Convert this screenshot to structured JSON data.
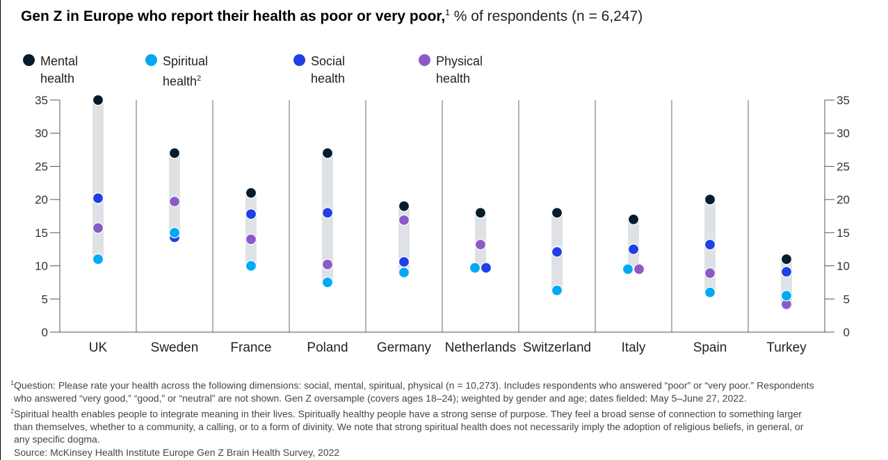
{
  "title": {
    "bold": "Gen Z in Europe who report their health as poor or very poor,",
    "sup": "1",
    "subtitle": " % of respondents (n = 6,247)"
  },
  "legend": [
    {
      "key": "mental",
      "line1": "Mental",
      "line2": "health",
      "sup": "",
      "color": "#051C2C"
    },
    {
      "key": "spiritual",
      "line1": "Spiritual",
      "line2": "health",
      "sup": "2",
      "color": "#00A9F4"
    },
    {
      "key": "social",
      "line1": "Social",
      "line2": "health",
      "sup": "",
      "color": "#1F40E6"
    },
    {
      "key": "physical",
      "line1": "Physical",
      "line2": "health",
      "sup": "",
      "color": "#8C5AC8"
    }
  ],
  "chart_data": {
    "type": "dot-range",
    "title": "Gen Z in Europe who report their health as poor or very poor",
    "ylabel": "% of respondents",
    "ylim": [
      0,
      35
    ],
    "yticks": [
      0,
      5,
      10,
      15,
      20,
      25,
      30,
      35
    ],
    "categories": [
      "UK",
      "Sweden",
      "France",
      "Poland",
      "Germany",
      "Netherlands",
      "Switzerland",
      "Italy",
      "Spain",
      "Turkey"
    ],
    "series": [
      {
        "name": "Mental health",
        "key": "mental",
        "color": "#051C2C",
        "values": [
          35,
          27,
          21,
          27,
          19,
          18,
          18,
          17,
          20,
          11
        ]
      },
      {
        "name": "Spiritual health",
        "key": "spiritual",
        "color": "#00A9F4",
        "values": [
          11,
          15,
          10,
          7.5,
          9,
          9.7,
          6.3,
          9.5,
          6,
          5.5
        ]
      },
      {
        "name": "Social health",
        "key": "social",
        "color": "#1F40E6",
        "values": [
          20.2,
          14.3,
          17.8,
          18,
          10.6,
          9.7,
          12.1,
          12.5,
          13.2,
          9.1
        ]
      },
      {
        "name": "Physical health",
        "key": "physical",
        "color": "#8C5AC8",
        "values": [
          15.7,
          19.7,
          14,
          10.2,
          16.9,
          13.2,
          12.2,
          9.5,
          8.9,
          4.2
        ]
      }
    ],
    "grid": "vertical category separators",
    "range_bar_color": "#DFE2E5"
  },
  "footnotes": {
    "note1_sup": "1",
    "note1_line1": "Question: Please rate your health across the following dimensions: social, mental, spiritual, physical (n = 10,273). Includes respondents who answered “poor” or “very poor.” Respondents",
    "note1_line2": "who answered “very good,” “good,” or “neutral” are not shown. Gen Z oversample (covers ages 18–24); weighted by gender and age; dates fielded: May 5–June 27, 2022.",
    "note2_sup": "2",
    "note2_line1": "Spiritual health enables people to integrate meaning in their lives. Spiritually healthy people have a strong sense of purpose. They feel a broad sense of connection to something larger",
    "note2_line2": "than themselves, whether to a community, a calling, or to a form of divinity. We note that strong spiritual health does not necessarily imply the adoption of religious beliefs, in general, or",
    "note2_line3": "any specific dogma.",
    "source": "Source: McKinsey Health Institute Europe Gen Z Brain Health Survey, 2022"
  }
}
